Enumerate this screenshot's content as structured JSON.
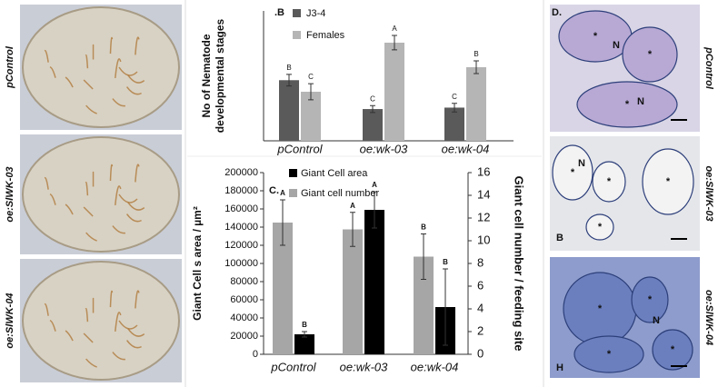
{
  "chart_data": [
    {
      "type": "bar",
      "panel": ".B",
      "ylabel": [
        "No of Nematode",
        "developmental stages"
      ],
      "categories": [
        "pControl",
        "oe:wk-03",
        "oe:wk-04"
      ],
      "ylim": [
        0,
        45
      ],
      "series": [
        {
          "name": "J3-4",
          "color": "#5a5a5a",
          "values": [
            21,
            11,
            11.5
          ],
          "errors": [
            2,
            1.2,
            1.5
          ],
          "letters": [
            "B",
            "C",
            "C"
          ]
        },
        {
          "name": "Females",
          "color": "#b5b5b5",
          "values": [
            17,
            34,
            25.5
          ],
          "errors": [
            2.8,
            2.5,
            2.2
          ],
          "letters": [
            "C",
            "A",
            "B"
          ]
        }
      ]
    },
    {
      "type": "bar",
      "panel": "C.",
      "ylabel": "Giant Cell s area / µm²",
      "y2label": "Giant cell number / feeding site",
      "categories": [
        "pControl",
        "oe:wk-03",
        "oe:wk-04"
      ],
      "ylim": [
        0,
        200000
      ],
      "yticks": [
        0,
        20000,
        40000,
        60000,
        80000,
        100000,
        120000,
        140000,
        160000,
        180000,
        200000
      ],
      "y2lim": [
        0,
        16
      ],
      "y2ticks": [
        0,
        2,
        4,
        6,
        8,
        10,
        12,
        14,
        16
      ],
      "series": [
        {
          "name": "Giant Cell area",
          "color": "#000000",
          "values": [
            22000,
            159000,
            52000
          ],
          "errors": [
            3000,
            20000,
            42000
          ],
          "letters": [
            "B",
            "A",
            "B"
          ]
        },
        {
          "name": "Giant cell number",
          "color": "#a6a6a6",
          "axis": "y2",
          "values": [
            11.6,
            11,
            8.6
          ],
          "errors": [
            2,
            1.5,
            2
          ],
          "letters": [
            "A",
            "A",
            "B"
          ]
        }
      ]
    }
  ],
  "panel_a": {
    "label": ".A",
    "rows": [
      "pControl",
      "oe:SlWK-03",
      "oe:SlWK-04"
    ]
  },
  "panel_d": {
    "label": "D.",
    "rows": [
      "pControl",
      "oe:SlWK-03",
      "oe:SlWK-04"
    ],
    "nucleus": "N",
    "giant_cell": "*",
    "tags": [
      "B",
      "H"
    ]
  }
}
